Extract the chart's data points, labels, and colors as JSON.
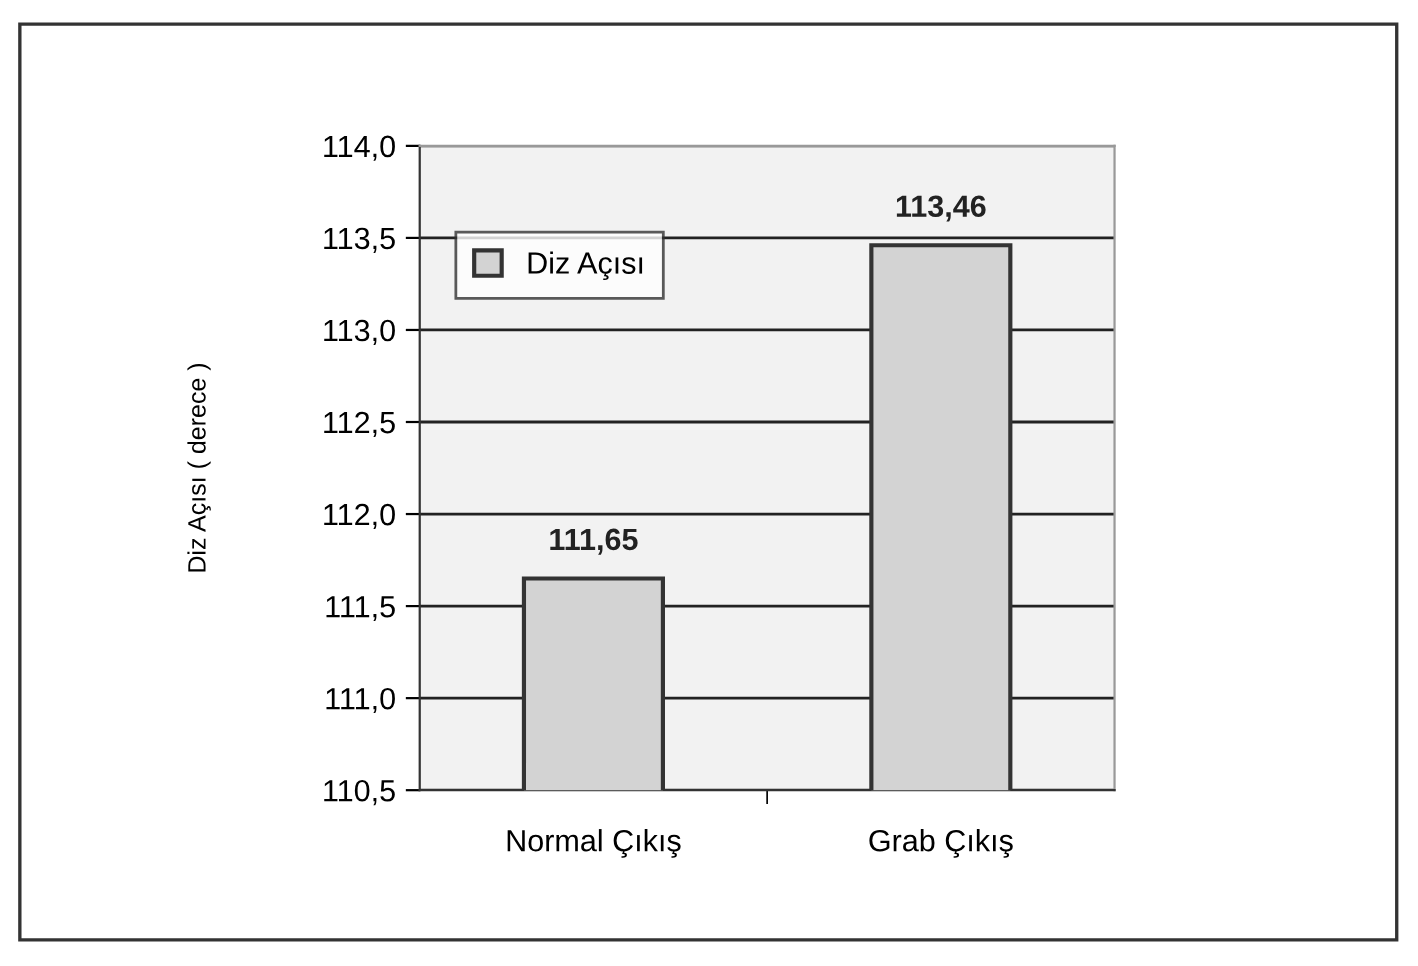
{
  "chart_data": {
    "type": "bar",
    "ylabel": "Diz Açısı ( derece )",
    "categories": [
      "Normal Çıkış",
      "Grab Çıkış"
    ],
    "series": [
      {
        "name": "Diz Açısı",
        "color": "#d3d3d3",
        "values": [
          111.65,
          113.46
        ]
      }
    ],
    "value_labels": [
      "111,65",
      "113,46"
    ],
    "ylim": [
      110.5,
      114.0
    ],
    "yticks": [
      {
        "value": 110.5,
        "label": "110,5"
      },
      {
        "value": 111.0,
        "label": "111,0"
      },
      {
        "value": 111.5,
        "label": "111,5"
      },
      {
        "value": 112.0,
        "label": "112,0"
      },
      {
        "value": 112.5,
        "label": "112,5"
      },
      {
        "value": 113.0,
        "label": "113,0"
      },
      {
        "value": 113.5,
        "label": "113,5"
      },
      {
        "value": 114.0,
        "label": "114,0"
      }
    ],
    "grid": "y",
    "legend": "top left"
  }
}
